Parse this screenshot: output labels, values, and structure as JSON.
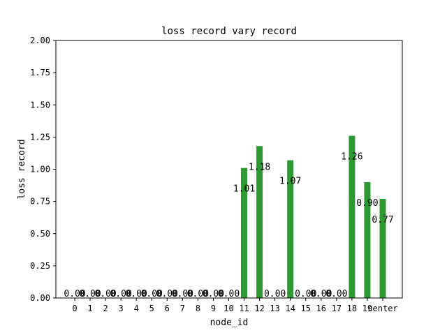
{
  "chart_data": {
    "type": "bar",
    "title": "loss record vary record",
    "xlabel": "node_id",
    "ylabel": "loss record",
    "categories": [
      "0",
      "1",
      "2",
      "3",
      "4",
      "5",
      "6",
      "7",
      "8",
      "9",
      "10",
      "11",
      "12",
      "13",
      "14",
      "15",
      "16",
      "17",
      "18",
      "19",
      "center"
    ],
    "values": [
      0,
      0,
      0,
      0,
      0,
      0,
      0,
      0,
      0,
      0,
      0,
      1.01,
      1.18,
      0,
      1.07,
      0,
      0,
      0,
      1.26,
      0.9,
      0.77
    ],
    "value_labels": [
      "0.00",
      "0.00",
      "0.00",
      "0.00",
      "0.00",
      "0.00",
      "0.00",
      "0.00",
      "0.00",
      "0.00",
      "0.00",
      "1.01",
      "1.18",
      "0.00",
      "1.07",
      "0.00",
      "0.00",
      "0.00",
      "1.26",
      "0.90",
      "0.77"
    ],
    "ylim": [
      0,
      2.0
    ],
    "y_ticks": [
      "0.00",
      "0.25",
      "0.50",
      "0.75",
      "1.00",
      "1.25",
      "1.50",
      "1.75",
      "2.00"
    ],
    "bar_color": "#2e9932",
    "grid": false,
    "legend": "none"
  }
}
